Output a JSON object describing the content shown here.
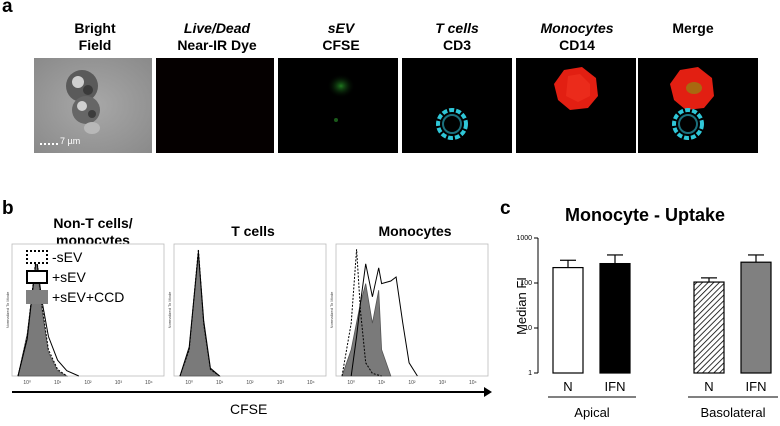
{
  "panel_a": {
    "label": "a",
    "channels": [
      {
        "line1": "Bright",
        "line2": "Field",
        "italic_line1": false,
        "fill": "#8f8f8f"
      },
      {
        "line1": "Live/Dead",
        "line2": "Near-IR Dye",
        "italic_line1": true,
        "fill": "#050000"
      },
      {
        "line1": "sEV",
        "line2": "CFSE",
        "italic_line1": true,
        "fill": "#000500"
      },
      {
        "line1": "T cells",
        "line2": "CD3",
        "italic_line1": true,
        "fill": "#000000"
      },
      {
        "line1": "Monocytes",
        "line2": "CD14",
        "italic_line1": true,
        "fill": "#000000"
      },
      {
        "line1": "Merge",
        "line2": "",
        "italic_line1": false,
        "fill": "#000000"
      }
    ],
    "scale_bar": "7 µm"
  },
  "panel_b": {
    "label": "b",
    "panels": [
      {
        "title": "Non-T cells/\nmonocytes"
      },
      {
        "title": "T cells"
      },
      {
        "title": "Monocytes"
      }
    ],
    "legend": [
      "-sEV",
      "+sEV",
      "+sEV+CCD"
    ],
    "xlabel": "CFSE",
    "ylabel": "Normalized To Mode",
    "x_ticks": [
      "10⁰",
      "10¹",
      "10²",
      "10³",
      "10⁴"
    ]
  },
  "panel_c": {
    "label": "c",
    "title": "Monocyte - Uptake"
  },
  "chart_data": [
    {
      "type": "bar",
      "title": "Monocyte - Uptake",
      "ylabel": "Median FI",
      "yscale": "log",
      "ylim": [
        1,
        1000
      ],
      "y_ticks": [
        "1",
        "10",
        "100",
        "1000"
      ],
      "categories": [
        "N",
        "IFN",
        "N",
        "IFN"
      ],
      "groups": [
        {
          "name": "Apical",
          "members": [
            0,
            1
          ]
        },
        {
          "name": "Basolateral",
          "members": [
            2,
            3
          ]
        }
      ],
      "values": [
        220,
        270,
        105,
        290
      ],
      "errors": [
        100,
        150,
        25,
        130
      ],
      "fills": [
        "#ffffff",
        "#000000",
        "hatch",
        "#808080"
      ]
    },
    {
      "type": "area",
      "title": "Non-T cells/\nmonocytes",
      "xlabel": "CFSE",
      "xscale": "log",
      "series": [
        {
          "name": "-sEV",
          "x": [
            0.5,
            1,
            2,
            3,
            5,
            10,
            20
          ],
          "y": [
            0,
            30,
            92,
            55,
            20,
            5,
            0
          ]
        },
        {
          "name": "+sEV",
          "x": [
            0.5,
            1,
            2,
            3,
            5,
            10,
            20,
            50
          ],
          "y": [
            0,
            28,
            90,
            58,
            30,
            12,
            4,
            0
          ]
        },
        {
          "name": "+sEV+CCD",
          "x": [
            0.5,
            1,
            2,
            3,
            5,
            10,
            20
          ],
          "y": [
            0,
            32,
            88,
            52,
            18,
            4,
            0
          ]
        }
      ]
    },
    {
      "type": "area",
      "title": "T cells",
      "xlabel": "CFSE",
      "xscale": "log",
      "series": [
        {
          "name": "-sEV",
          "x": [
            0.5,
            1,
            2,
            3,
            5,
            10
          ],
          "y": [
            0,
            20,
            96,
            40,
            5,
            0
          ]
        },
        {
          "name": "+sEV",
          "x": [
            0.5,
            1,
            2,
            3,
            5,
            10
          ],
          "y": [
            0,
            22,
            94,
            42,
            6,
            0
          ]
        },
        {
          "name": "+sEV+CCD",
          "x": [
            0.5,
            1,
            2,
            3,
            5,
            10
          ],
          "y": [
            0,
            20,
            92,
            38,
            5,
            0
          ]
        }
      ]
    },
    {
      "type": "area",
      "title": "Monocytes",
      "xlabel": "CFSE",
      "xscale": "log",
      "series": [
        {
          "name": "-sEV",
          "x": [
            0.5,
            1,
            1.5,
            2,
            3,
            5,
            10
          ],
          "y": [
            0,
            40,
            96,
            50,
            10,
            2,
            0
          ]
        },
        {
          "name": "+sEV",
          "x": [
            1,
            1.5,
            2,
            3,
            5,
            8,
            10,
            20,
            30,
            50,
            80,
            150
          ],
          "y": [
            0,
            30,
            55,
            85,
            60,
            82,
            70,
            72,
            75,
            40,
            10,
            0
          ]
        },
        {
          "name": "+sEV+CCD",
          "x": [
            0.5,
            1,
            2,
            3,
            5,
            8,
            10,
            20
          ],
          "y": [
            0,
            20,
            55,
            70,
            40,
            65,
            20,
            0
          ]
        }
      ]
    }
  ]
}
